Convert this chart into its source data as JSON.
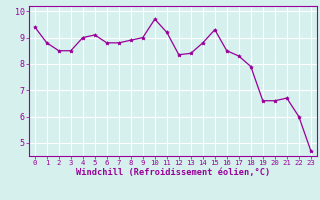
{
  "x": [
    0,
    1,
    2,
    3,
    4,
    5,
    6,
    7,
    8,
    9,
    10,
    11,
    12,
    13,
    14,
    15,
    16,
    17,
    18,
    19,
    20,
    21,
    22,
    23
  ],
  "y": [
    9.4,
    8.8,
    8.5,
    8.5,
    9.0,
    9.1,
    8.8,
    8.8,
    8.9,
    9.0,
    9.7,
    9.2,
    8.35,
    8.4,
    8.8,
    9.3,
    8.5,
    8.3,
    7.9,
    6.6,
    6.6,
    6.7,
    6.0,
    4.7
  ],
  "line_color": "#990099",
  "marker": "*",
  "xlim": [
    -0.5,
    23.5
  ],
  "ylim": [
    4.5,
    10.2
  ],
  "yticks": [
    5,
    6,
    7,
    8,
    9,
    10
  ],
  "xticks": [
    0,
    1,
    2,
    3,
    4,
    5,
    6,
    7,
    8,
    9,
    10,
    11,
    12,
    13,
    14,
    15,
    16,
    17,
    18,
    19,
    20,
    21,
    22,
    23
  ],
  "xlabel": "Windchill (Refroidissement éolien,°C)",
  "bg_color": "#d6f0ee",
  "grid_color": "#ffffff",
  "tick_color": "#990099",
  "label_color": "#990099",
  "spine_color": "#990099",
  "xtick_fontsize": 5.2,
  "ytick_fontsize": 6.0,
  "xlabel_fontsize": 6.2
}
